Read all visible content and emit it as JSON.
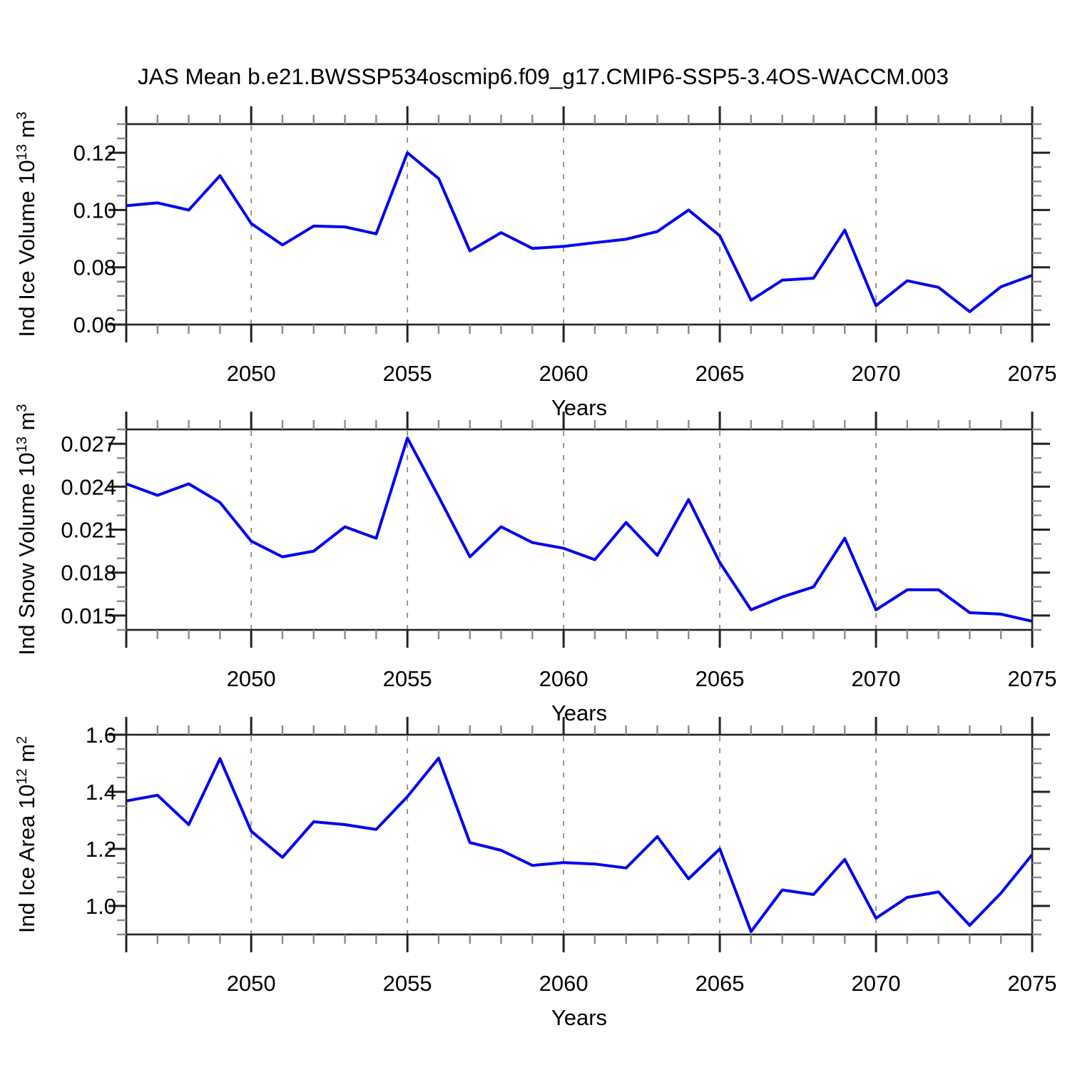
{
  "title": "JAS Mean b.e21.BWSSP534oscmip6.f09_g17.CMIP6-SSP5-3.4OS-WACCM.003",
  "colors": {
    "line": "#0000ee",
    "frame": "#222222",
    "tick_major": "#222222",
    "tick_minor": "#8a8a8a",
    "grid": "#8a8a8a",
    "background": "#ffffff",
    "text": "#000000"
  },
  "chart_data": [
    {
      "type": "line",
      "name": "ice-volume",
      "ylabel_text": "Ind Ice Volume 10^13 m^3",
      "ylabel_parts": [
        [
          "Ind Ice Volume 10",
          false
        ],
        [
          "13",
          true
        ],
        [
          " m",
          false
        ],
        [
          "3",
          true
        ]
      ],
      "xlabel": "Years",
      "x": [
        2046,
        2047,
        2048,
        2049,
        2050,
        2051,
        2052,
        2053,
        2054,
        2055,
        2056,
        2057,
        2058,
        2059,
        2060,
        2061,
        2062,
        2063,
        2064,
        2065,
        2066,
        2067,
        2068,
        2069,
        2070,
        2071,
        2072,
        2073,
        2074,
        2075
      ],
      "values": [
        0.1015,
        0.1025,
        0.1,
        0.112,
        0.0953,
        0.0878,
        0.0944,
        0.0941,
        0.0917,
        0.12,
        0.111,
        0.0857,
        0.0921,
        0.0866,
        0.0873,
        0.0886,
        0.0898,
        0.0925,
        0.1,
        0.091,
        0.0685,
        0.0755,
        0.0762,
        0.093,
        0.0666,
        0.0753,
        0.073,
        0.0645,
        0.0732,
        0.0772
      ],
      "xlim": [
        2046,
        2075
      ],
      "ylim": [
        0.06,
        0.13
      ],
      "yticks": [
        {
          "v": 0.12,
          "label": "0.12"
        },
        {
          "v": 0.1,
          "label": "0.10"
        },
        {
          "v": 0.08,
          "label": "0.08"
        },
        {
          "v": 0.06,
          "label": "0.06"
        }
      ],
      "ytick_minor_step": 0.005,
      "xticks_major": [
        2046,
        2050,
        2055,
        2060,
        2065,
        2070,
        2075
      ],
      "xticks_labeled": [
        {
          "v": 2050,
          "label": "2050"
        },
        {
          "v": 2055,
          "label": "2055"
        },
        {
          "v": 2060,
          "label": "2060"
        },
        {
          "v": 2065,
          "label": "2065"
        },
        {
          "v": 2070,
          "label": "2070"
        },
        {
          "v": 2075,
          "label": "2075"
        }
      ],
      "xtick_minor_step": 1,
      "grid_x": [
        2050,
        2055,
        2060,
        2065,
        2070
      ],
      "grid_on": true,
      "legend": "none"
    },
    {
      "type": "line",
      "name": "snow-volume",
      "ylabel_text": "Ind Snow Volume 10^13 m^3",
      "ylabel_parts": [
        [
          "Ind Snow Volume 10",
          false
        ],
        [
          "13",
          true
        ],
        [
          " m",
          false
        ],
        [
          "3",
          true
        ]
      ],
      "xlabel": "Years",
      "x": [
        2046,
        2047,
        2048,
        2049,
        2050,
        2051,
        2052,
        2053,
        2054,
        2055,
        2056,
        2057,
        2058,
        2059,
        2060,
        2061,
        2062,
        2063,
        2064,
        2065,
        2066,
        2067,
        2068,
        2069,
        2070,
        2071,
        2072,
        2073,
        2074,
        2075
      ],
      "values": [
        0.0242,
        0.0234,
        0.0242,
        0.0229,
        0.0202,
        0.0191,
        0.0195,
        0.0212,
        0.0204,
        0.0274,
        0.0233,
        0.0191,
        0.0212,
        0.0201,
        0.0197,
        0.0189,
        0.0215,
        0.0192,
        0.0231,
        0.0187,
        0.0154,
        0.0163,
        0.017,
        0.0204,
        0.0154,
        0.0168,
        0.0168,
        0.0152,
        0.0151,
        0.0146
      ],
      "xlim": [
        2046,
        2075
      ],
      "ylim": [
        0.014,
        0.028
      ],
      "yticks": [
        {
          "v": 0.027,
          "label": "0.027"
        },
        {
          "v": 0.024,
          "label": "0.024"
        },
        {
          "v": 0.021,
          "label": "0.021"
        },
        {
          "v": 0.018,
          "label": "0.018"
        },
        {
          "v": 0.015,
          "label": "0.015"
        }
      ],
      "ytick_minor_step": 0.001,
      "xticks_major": [
        2046,
        2050,
        2055,
        2060,
        2065,
        2070,
        2075
      ],
      "xticks_labeled": [
        {
          "v": 2050,
          "label": "2050"
        },
        {
          "v": 2055,
          "label": "2055"
        },
        {
          "v": 2060,
          "label": "2060"
        },
        {
          "v": 2065,
          "label": "2065"
        },
        {
          "v": 2070,
          "label": "2070"
        },
        {
          "v": 2075,
          "label": "2075"
        }
      ],
      "xtick_minor_step": 1,
      "grid_x": [
        2050,
        2055,
        2060,
        2065,
        2070
      ],
      "grid_on": true,
      "legend": "none"
    },
    {
      "type": "line",
      "name": "ice-area",
      "ylabel_text": "Ind Ice Area 10^12 m^2",
      "ylabel_parts": [
        [
          "Ind Ice Area 10",
          false
        ],
        [
          "12",
          true
        ],
        [
          " m",
          false
        ],
        [
          "2",
          true
        ]
      ],
      "xlabel": "Years",
      "x": [
        2046,
        2047,
        2048,
        2049,
        2050,
        2051,
        2052,
        2053,
        2054,
        2055,
        2056,
        2057,
        2058,
        2059,
        2060,
        2061,
        2062,
        2063,
        2064,
        2065,
        2066,
        2067,
        2068,
        2069,
        2070,
        2071,
        2072,
        2073,
        2074,
        2075
      ],
      "values": [
        1.368,
        1.388,
        1.285,
        1.516,
        1.262,
        1.17,
        1.295,
        1.285,
        1.268,
        1.383,
        1.518,
        1.222,
        1.195,
        1.142,
        1.152,
        1.147,
        1.133,
        1.243,
        1.095,
        1.2,
        0.91,
        1.056,
        1.04,
        1.163,
        0.957,
        1.03,
        1.049,
        0.932,
        1.045,
        1.18
      ],
      "xlim": [
        2046,
        2075
      ],
      "ylim": [
        0.9,
        1.6
      ],
      "yticks": [
        {
          "v": 1.6,
          "label": "1.6"
        },
        {
          "v": 1.4,
          "label": "1.4"
        },
        {
          "v": 1.2,
          "label": "1.2"
        },
        {
          "v": 1.0,
          "label": "1.0"
        }
      ],
      "ytick_minor_step": 0.05,
      "xticks_major": [
        2046,
        2050,
        2055,
        2060,
        2065,
        2070,
        2075
      ],
      "xticks_labeled": [
        {
          "v": 2050,
          "label": "2050"
        },
        {
          "v": 2055,
          "label": "2055"
        },
        {
          "v": 2060,
          "label": "2060"
        },
        {
          "v": 2065,
          "label": "2065"
        },
        {
          "v": 2070,
          "label": "2070"
        },
        {
          "v": 2075,
          "label": "2075"
        }
      ],
      "xtick_minor_step": 1,
      "grid_x": [
        2050,
        2055,
        2060,
        2065,
        2070
      ],
      "grid_on": true,
      "legend": "none"
    }
  ]
}
